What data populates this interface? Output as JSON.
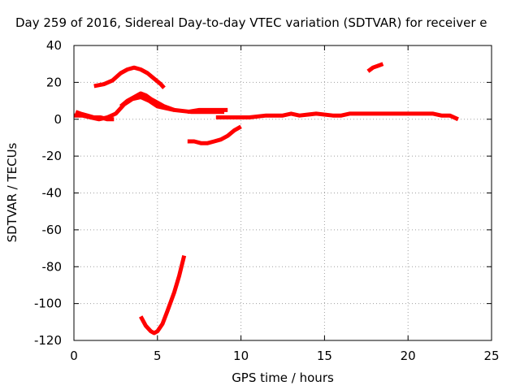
{
  "chart_data": {
    "type": "line",
    "title": "Day 259 of 2016, Sidereal Day-to-day VTEC variation (SDTVAR) for receiver e",
    "xlabel": "GPS time / hours",
    "ylabel": "SDTVAR / TECUs",
    "xlim": [
      0,
      25
    ],
    "ylim": [
      -120,
      40
    ],
    "xticks": [
      0,
      5,
      10,
      15,
      20,
      25
    ],
    "yticks": [
      40,
      20,
      0,
      -20,
      -40,
      -60,
      -80,
      -100,
      -120
    ],
    "grid": true,
    "series_color": "#ff0000",
    "series": [
      {
        "name": "arc-main-low",
        "x": [
          0.0,
          0.5,
          1.0,
          1.5,
          2.0,
          2.5,
          3.0,
          3.5,
          4.0,
          4.5,
          5.0,
          6.0,
          7.0,
          8.0,
          9.0
        ],
        "y": [
          2,
          2,
          1,
          0,
          1,
          3,
          8,
          11,
          12,
          10,
          7,
          5,
          4,
          4,
          4
        ]
      },
      {
        "name": "arc-upper-hump",
        "x": [
          1.2,
          1.8,
          2.3,
          2.8,
          3.2,
          3.6,
          4.0,
          4.4,
          4.8,
          5.2,
          5.4
        ],
        "y": [
          18,
          19,
          21,
          25,
          27,
          28,
          27,
          25,
          22,
          19,
          17
        ]
      },
      {
        "name": "arc-mid-hump",
        "x": [
          2.8,
          3.2,
          3.6,
          4.0,
          4.3,
          4.6,
          5.0,
          5.4,
          6.0
        ],
        "y": [
          7,
          10,
          12,
          14,
          13,
          11,
          9,
          7,
          5
        ]
      },
      {
        "name": "arc-noisy-start",
        "x": [
          0.1,
          0.4,
          0.8,
          1.2,
          1.6,
          2.0,
          2.4
        ],
        "y": [
          4,
          3,
          2,
          1,
          1,
          0,
          0
        ]
      },
      {
        "name": "arc-short-plateau",
        "x": [
          6.8,
          7.5,
          8.2,
          8.8,
          9.2
        ],
        "y": [
          4,
          5,
          5,
          5,
          5
        ]
      },
      {
        "name": "arc-dip",
        "x": [
          6.8,
          7.2,
          7.6,
          8.0,
          8.4,
          8.8,
          9.2,
          9.6,
          10.0
        ],
        "y": [
          -12,
          -12,
          -13,
          -13,
          -12,
          -11,
          -9,
          -6,
          -4
        ]
      },
      {
        "name": "arc-deep-v",
        "x": [
          4.0,
          4.3,
          4.6,
          4.8,
          5.0,
          5.3,
          5.6,
          6.0,
          6.3,
          6.6
        ],
        "y": [
          -107,
          -112,
          -115,
          -116,
          -115,
          -111,
          -104,
          -94,
          -85,
          -74
        ]
      },
      {
        "name": "arc-long-flat",
        "x": [
          8.5,
          9.5,
          10.5,
          11.5,
          12.5,
          13.0,
          13.5,
          14.5,
          15.5,
          16.0,
          16.5,
          17.5,
          18.5,
          19.5,
          20.5,
          21.5,
          22.0,
          22.5,
          23.0
        ],
        "y": [
          1,
          1,
          1,
          2,
          2,
          3,
          2,
          3,
          2,
          2,
          3,
          3,
          3,
          3,
          3,
          3,
          2,
          2,
          0
        ]
      },
      {
        "name": "arc-short-rise",
        "x": [
          17.6,
          17.9,
          18.2,
          18.5
        ],
        "y": [
          26,
          28,
          29,
          30
        ]
      }
    ]
  }
}
